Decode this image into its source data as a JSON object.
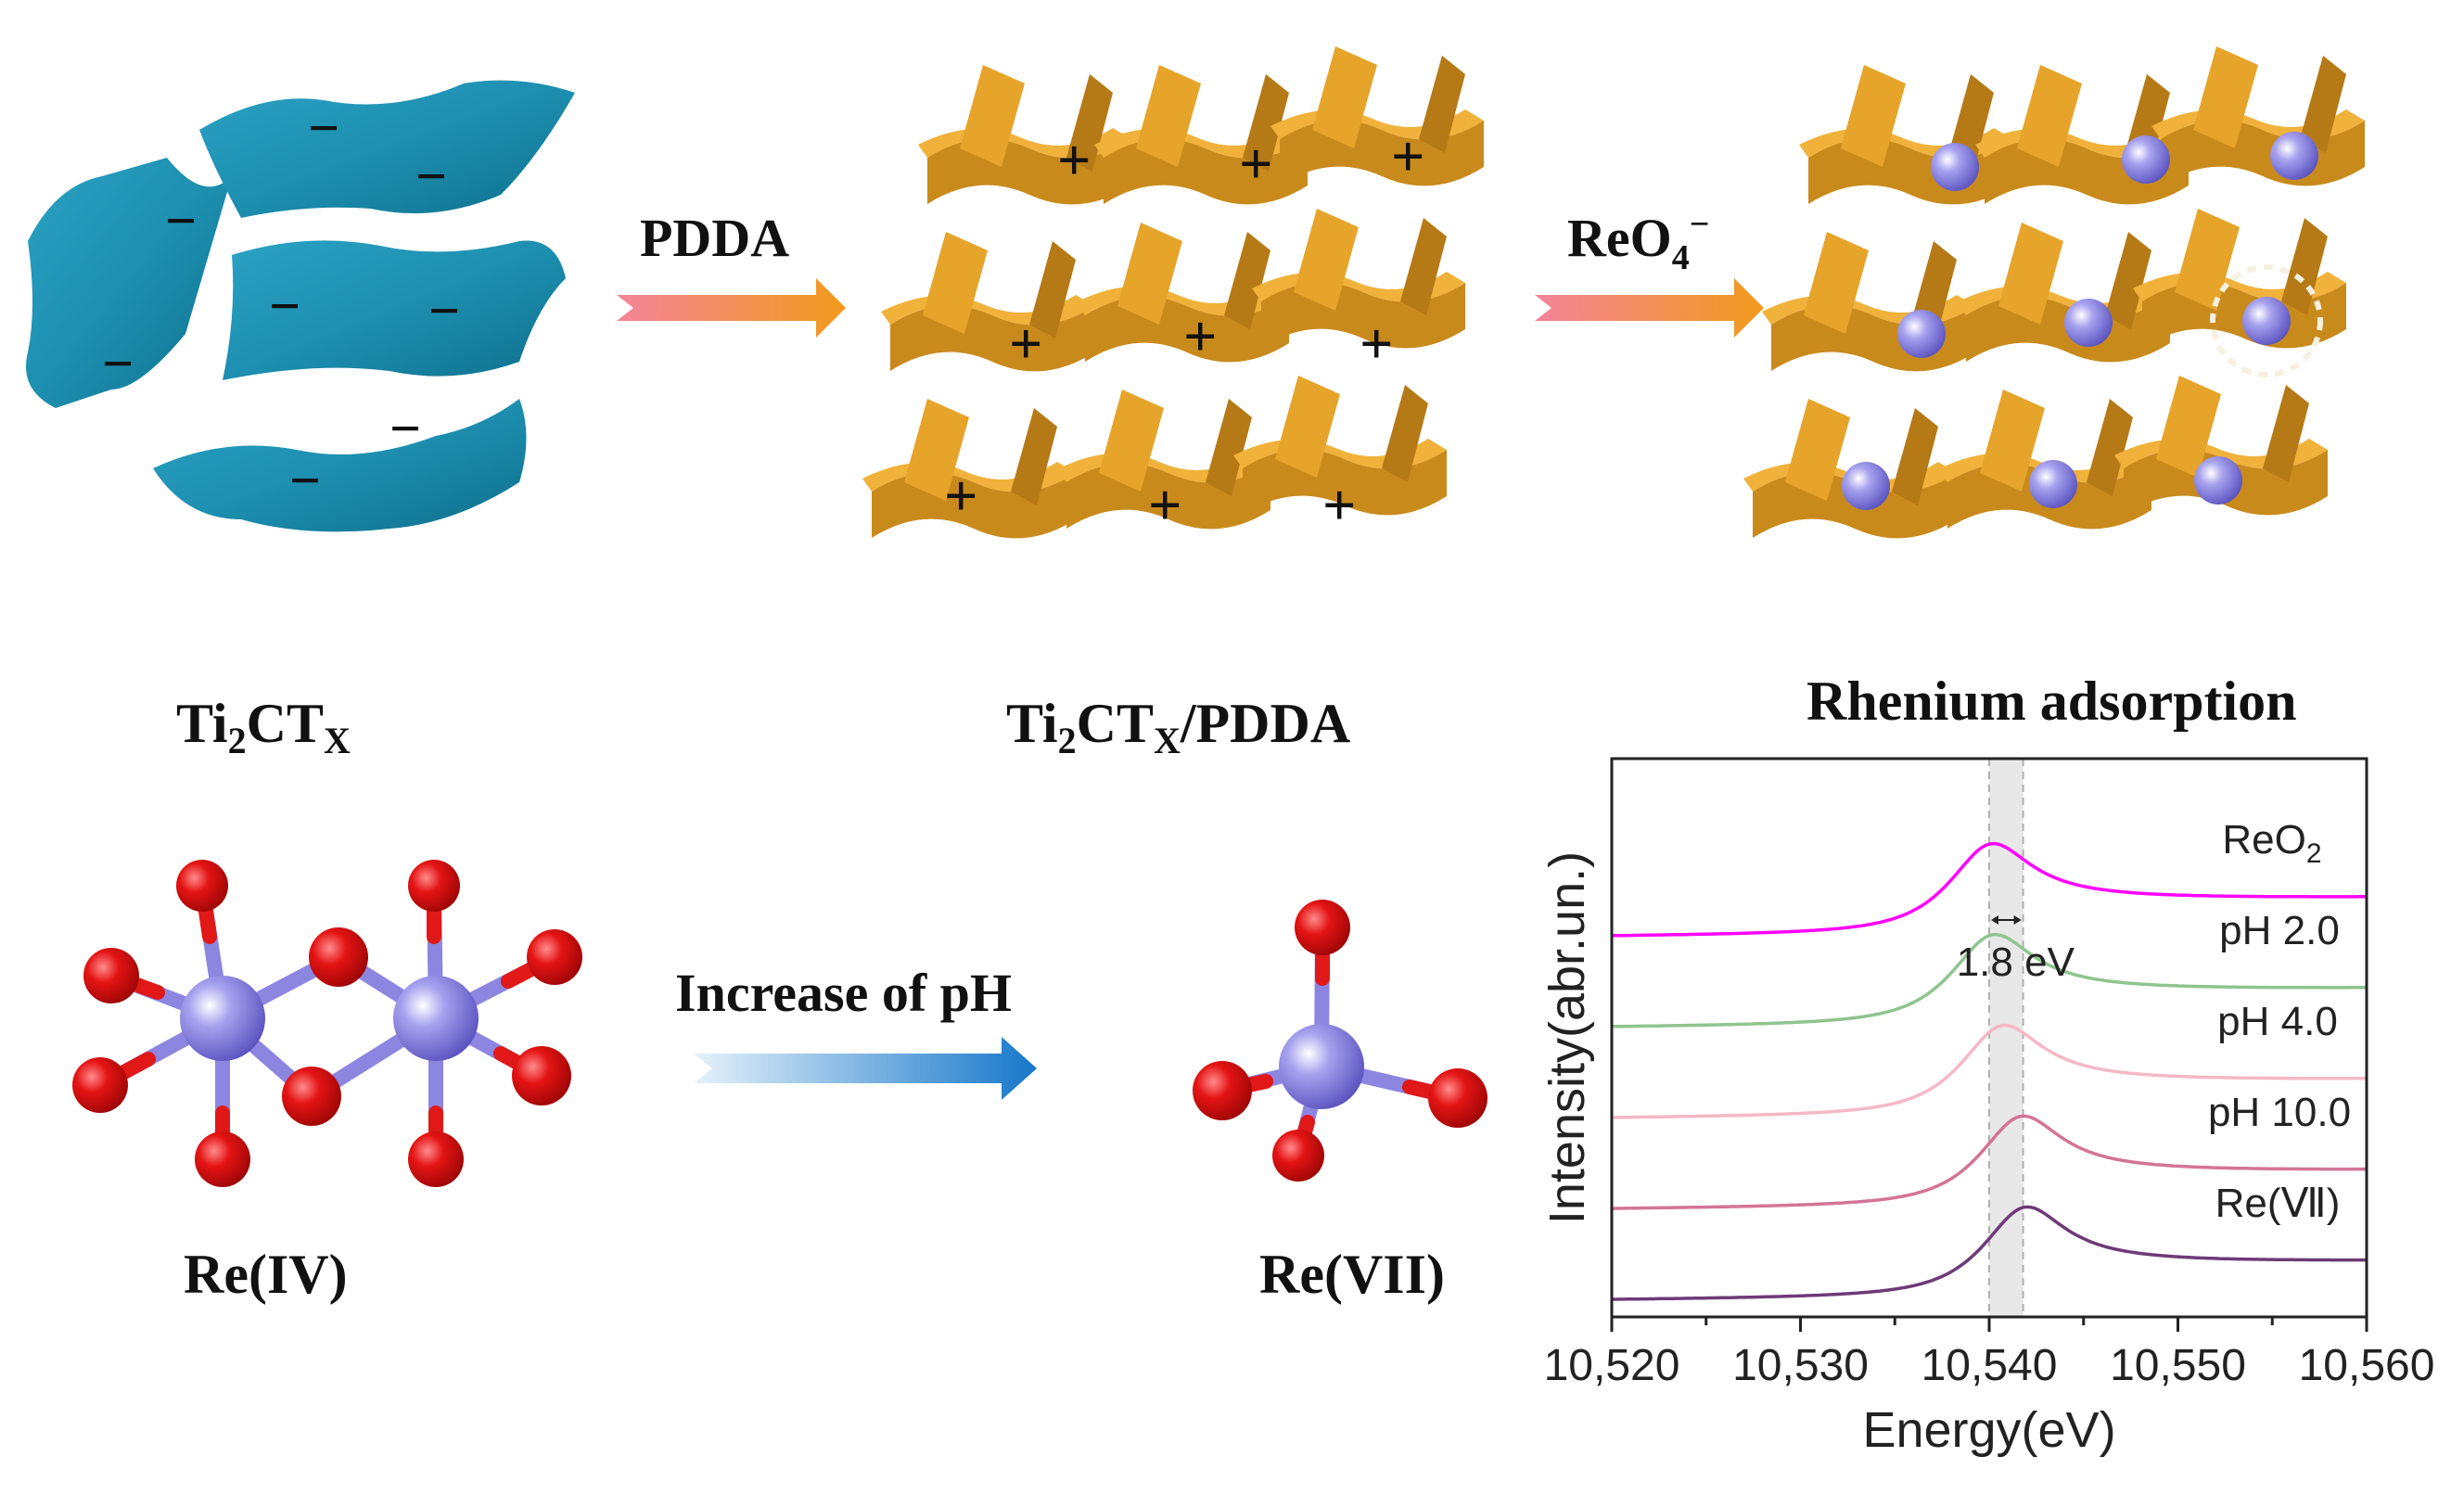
{
  "labels": {
    "ti2ctx": {
      "base": "Ti",
      "sub1": "2",
      "mid": "CT",
      "sub2": "X"
    },
    "ti2ctx_pdda": {
      "base": "Ti",
      "sub1": "2",
      "mid": "CT",
      "sub2": "X",
      "tail": "/PDDA"
    },
    "rhenium_adsorption": "Rhenium adsorption",
    "re_iv": "Re(IV)",
    "re_vii": "Re(VII)"
  },
  "arrows": {
    "pdda": "PDDA",
    "reo4": {
      "base": "ReO",
      "sub": "4",
      "sup": "−"
    },
    "increase_ph": "Increase of pH"
  },
  "charges": {
    "negative": "−",
    "positive": "+"
  },
  "colors": {
    "mxene": "#1d8fb0",
    "framework": "#e3a227",
    "ion": "#8c86e0",
    "oxygen": "#e01818",
    "rhenium": "#8c86e0"
  },
  "chart_data": {
    "type": "line",
    "xlabel": "Energy(eV)",
    "ylabel": "Intensity(abr.un.)",
    "xlim": [
      10520,
      10560
    ],
    "x_ticks": [
      "10,520",
      "10,530",
      "10,540",
      "10,550",
      "10,560"
    ],
    "annotation": "1.8 eV",
    "band": [
      10540,
      10541.8
    ],
    "series": [
      {
        "name": "ReO",
        "name_sub": "2",
        "color": "#ff00ff",
        "offset": 4,
        "peak": 10540.0
      },
      {
        "name": "pH 2.0",
        "color": "#8fc48f",
        "offset": 3,
        "peak": 10540.1
      },
      {
        "name": "pH 4.0",
        "color": "#f5b8c6",
        "offset": 2,
        "peak": 10540.6
      },
      {
        "name": "pH 10.0",
        "color": "#d47496",
        "offset": 1,
        "peak": 10541.6
      },
      {
        "name": "Re(Ⅶ)",
        "color": "#6e3a78",
        "offset": 0,
        "peak": 10541.8
      }
    ]
  }
}
